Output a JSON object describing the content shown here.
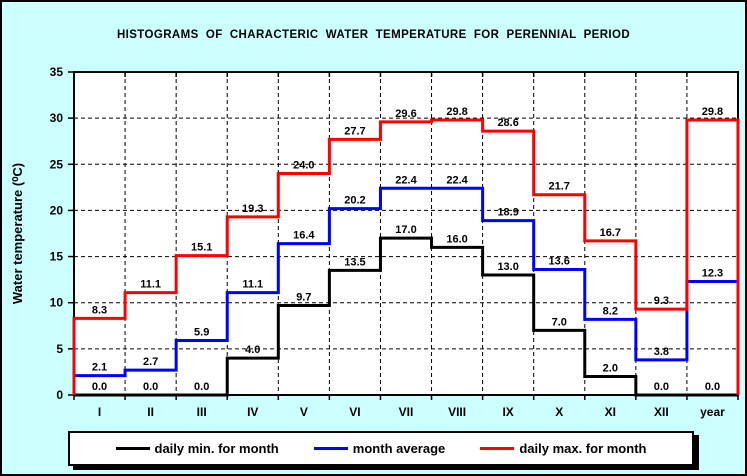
{
  "chart_data": {
    "type": "line",
    "subtype": "step-histogram",
    "title": "HISTOGRAMS  OF  CHARACTERIC  WATER  TEMPERATURE  FOR  PERENNIAL  PERIOD",
    "xlabel": "",
    "ylabel": "Water temperature (⁰C)",
    "ylim": [
      0,
      35
    ],
    "ytick_step": 5,
    "grid": "dashed",
    "legend_position": "bottom",
    "categories": [
      "I",
      "II",
      "III",
      "IV",
      "V",
      "VI",
      "VII",
      "VIII",
      "IX",
      "X",
      "XI",
      "XII",
      "year"
    ],
    "series": [
      {
        "name": "daily min. for month",
        "color": "#000000",
        "values": [
          0.0,
          0.0,
          0.0,
          4.0,
          9.7,
          13.5,
          17.0,
          16.0,
          13.0,
          7.0,
          2.0,
          0.0,
          0.0
        ]
      },
      {
        "name": "month average",
        "color": "#0000ff",
        "values": [
          2.1,
          2.7,
          5.9,
          11.1,
          16.4,
          20.2,
          22.4,
          22.4,
          18.9,
          13.6,
          8.2,
          3.8,
          12.3
        ]
      },
      {
        "name": "daily max. for month",
        "color": "#ff0000",
        "values": [
          8.3,
          11.1,
          15.1,
          19.3,
          24.0,
          27.7,
          29.6,
          29.8,
          28.6,
          21.7,
          16.7,
          9.3,
          29.8
        ]
      }
    ]
  },
  "colors": {
    "background": "#ccffff",
    "plot_background": "#ffffff",
    "axis": "#000000",
    "value_labels": "#000000"
  }
}
